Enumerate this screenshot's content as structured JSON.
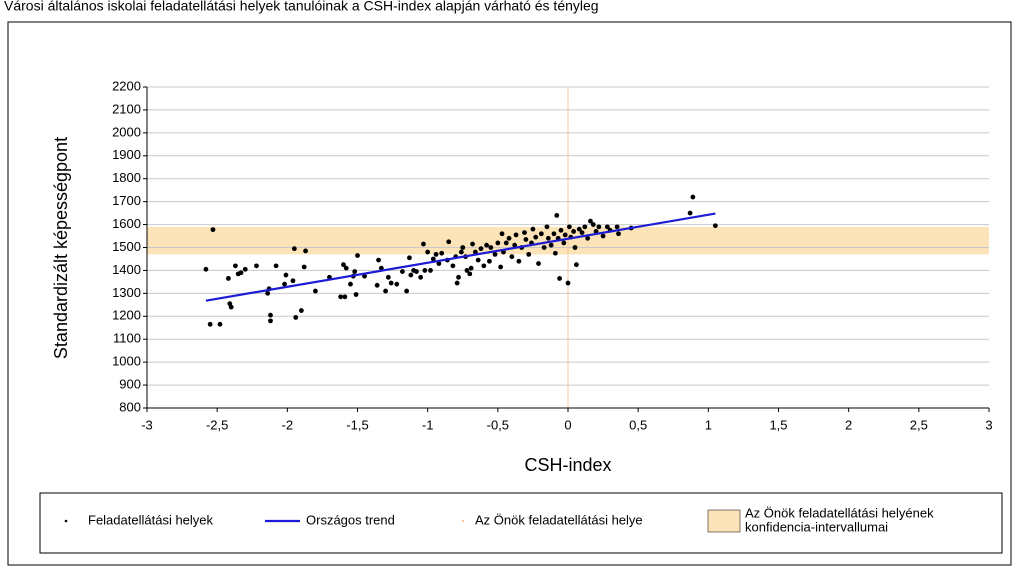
{
  "chart_data": {
    "type": "scatter",
    "title": "Városi általános iskolai feladatellátási helyek tanulóinak a CSH-index alapján várható és tényleg",
    "x_label": "CSH-index",
    "y_label": "Standardizált képességpont",
    "xlim": [
      -3,
      3
    ],
    "ylim": [
      800,
      2200
    ],
    "xticks": [
      -3,
      {
        "value": -2.5,
        "label": "-2,5"
      },
      -2,
      {
        "value": -1.5,
        "label": "-1,5"
      },
      -1,
      {
        "value": -0.5,
        "label": "-0,5"
      },
      0,
      {
        "value": 0.5,
        "label": "0,5"
      },
      1,
      {
        "value": 1.5,
        "label": "1,5"
      },
      2,
      {
        "value": 2.5,
        "label": "2,5"
      },
      3
    ],
    "yticks": [
      800,
      900,
      1000,
      1100,
      1200,
      1300,
      1400,
      1500,
      1600,
      1700,
      1800,
      1900,
      2000,
      2100,
      2200
    ],
    "grid": true,
    "legend": "bottom",
    "series": [
      {
        "name": "Feladatellátási helyek",
        "color": "#000000",
        "x": [
          -2.58,
          -2.55,
          -2.53,
          -2.48,
          -2.42,
          -2.41,
          -2.4,
          -2.37,
          -2.35,
          -2.33,
          -2.3,
          -2.22,
          -2.14,
          -2.13,
          -2.12,
          -2.12,
          -2.08,
          -2.02,
          -2.01,
          -1.96,
          -1.95,
          -1.94,
          -1.9,
          -1.88,
          -1.87,
          -1.8,
          -1.7,
          -1.62,
          -1.6,
          -1.59,
          -1.58,
          -1.55,
          -1.53,
          -1.52,
          -1.51,
          -1.5,
          -1.45,
          -1.36,
          -1.35,
          -1.33,
          -1.3,
          -1.28,
          -1.26,
          -1.22,
          -1.18,
          -1.15,
          -1.13,
          -1.12,
          -1.1,
          -1.08,
          -1.05,
          -1.03,
          -1.02,
          -1.0,
          -0.98,
          -0.96,
          -0.94,
          -0.92,
          -0.9,
          -0.86,
          -0.85,
          -0.82,
          -0.8,
          -0.79,
          -0.78,
          -0.76,
          -0.75,
          -0.73,
          -0.72,
          -0.7,
          -0.69,
          -0.68,
          -0.66,
          -0.64,
          -0.62,
          -0.6,
          -0.58,
          -0.56,
          -0.55,
          -0.52,
          -0.5,
          -0.48,
          -0.47,
          -0.46,
          -0.44,
          -0.42,
          -0.4,
          -0.38,
          -0.37,
          -0.35,
          -0.33,
          -0.31,
          -0.3,
          -0.28,
          -0.26,
          -0.25,
          -0.23,
          -0.21,
          -0.19,
          -0.17,
          -0.15,
          -0.14,
          -0.12,
          -0.1,
          -0.09,
          -0.08,
          -0.07,
          -0.06,
          -0.05,
          -0.03,
          -0.02,
          0.0,
          0.01,
          0.02,
          0.04,
          0.05,
          0.06,
          0.08,
          0.1,
          0.12,
          0.14,
          0.16,
          0.18,
          0.2,
          0.22,
          0.25,
          0.28,
          0.3,
          0.35,
          0.36,
          0.45,
          0.87,
          0.89,
          1.05
        ],
        "values": [
          1405,
          1165,
          1578,
          1165,
          1365,
          1255,
          1240,
          1420,
          1385,
          1390,
          1405,
          1420,
          1300,
          1320,
          1205,
          1180,
          1420,
          1340,
          1380,
          1355,
          1495,
          1195,
          1225,
          1415,
          1485,
          1310,
          1370,
          1285,
          1425,
          1285,
          1410,
          1340,
          1375,
          1395,
          1295,
          1465,
          1375,
          1335,
          1445,
          1410,
          1310,
          1370,
          1345,
          1340,
          1395,
          1310,
          1455,
          1380,
          1400,
          1395,
          1370,
          1515,
          1400,
          1480,
          1400,
          1450,
          1470,
          1430,
          1475,
          1445,
          1525,
          1420,
          1460,
          1345,
          1370,
          1480,
          1500,
          1460,
          1400,
          1385,
          1410,
          1515,
          1480,
          1445,
          1495,
          1420,
          1510,
          1440,
          1500,
          1470,
          1520,
          1415,
          1560,
          1480,
          1520,
          1540,
          1460,
          1510,
          1555,
          1440,
          1500,
          1565,
          1535,
          1470,
          1520,
          1580,
          1545,
          1430,
          1560,
          1500,
          1590,
          1540,
          1510,
          1560,
          1475,
          1640,
          1540,
          1365,
          1575,
          1520,
          1555,
          1345,
          1590,
          1545,
          1570,
          1500,
          1425,
          1580,
          1565,
          1590,
          1540,
          1615,
          1600,
          1570,
          1590,
          1550,
          1590,
          1575,
          1590,
          1560,
          1585,
          1650,
          1720,
          1595
        ]
      }
    ],
    "trend": {
      "name": "Országos trend",
      "color": "#1c1cd6",
      "x": [
        -2.58,
        1.05
      ],
      "values": [
        1268,
        1648
      ]
    },
    "marker": {
      "name": "Az Önök feladatellátási helye",
      "color": "#f6c799",
      "x": 0
    },
    "band": {
      "name": [
        "Az Önök feladatellátási helyének",
        "konfidencia-intervallumai"
      ],
      "color": "#fde3b8",
      "range": [
        1470,
        1590
      ]
    }
  }
}
